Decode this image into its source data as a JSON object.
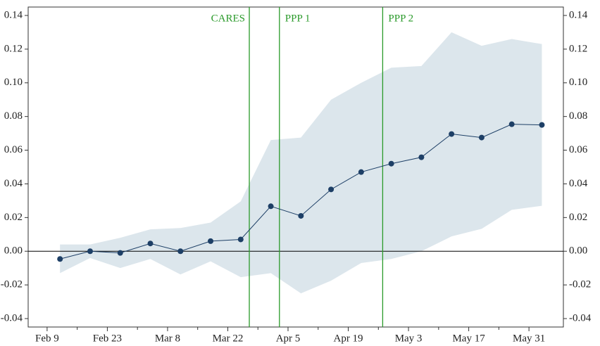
{
  "chart_data": {
    "type": "line",
    "x": [
      43,
      50,
      57,
      64,
      71,
      78,
      85,
      92,
      99,
      106,
      113,
      120,
      127,
      134,
      141,
      148,
      155
    ],
    "series": [
      {
        "color": "#1d3f66",
        "values": [
          -0.0046,
          0,
          -0.001,
          0.0046,
          0,
          0.006,
          0.007,
          0.0267,
          0.021,
          0.0367,
          0.047,
          0.052,
          0.0558,
          0.0696,
          0.0675,
          0.0754,
          0.075
        ],
        "upper": [
          0.004,
          0.004,
          0.008,
          0.013,
          0.0138,
          0.017,
          0.0296,
          0.066,
          0.0675,
          0.09,
          0.1,
          0.109,
          0.11,
          0.13,
          0.122,
          0.126,
          0.123
        ],
        "lower": [
          -0.013,
          -0.004,
          -0.01,
          -0.0046,
          -0.0138,
          -0.006,
          -0.0154,
          -0.013,
          -0.025,
          -0.0175,
          -0.007,
          -0.0046,
          0,
          0.0088,
          0.0133,
          0.0246,
          0.027
        ],
        "band_color": "#dce6ec"
      }
    ],
    "xlim": [
      35.6,
      160
    ],
    "xticks": [
      {
        "value": 40,
        "label": "Feb 9"
      },
      {
        "value": 54,
        "label": "Feb 23"
      },
      {
        "value": 68,
        "label": "Mar 8"
      },
      {
        "value": 82,
        "label": "Mar 22"
      },
      {
        "value": 96,
        "label": "Apr 5"
      },
      {
        "value": 110,
        "label": "Apr 19"
      },
      {
        "value": 124,
        "label": "May 3"
      },
      {
        "value": 138,
        "label": "May 17"
      },
      {
        "value": 152,
        "label": "May 31"
      }
    ],
    "ylim": [
      -0.045,
      0.145
    ],
    "yticks": [
      {
        "value": -0.04,
        "label": "-0.04"
      },
      {
        "value": -0.02,
        "label": "-0.02"
      },
      {
        "value": 0,
        "label": "0.00"
      },
      {
        "value": 0.02,
        "label": "0.02"
      },
      {
        "value": 0.04,
        "label": "0.04"
      },
      {
        "value": 0.06,
        "label": "0.06"
      },
      {
        "value": 0.08,
        "label": "0.08"
      },
      {
        "value": 0.1,
        "label": "0.10"
      },
      {
        "value": 0.12,
        "label": "0.12"
      },
      {
        "value": 0.14,
        "label": "0.14"
      }
    ],
    "reference_line": 0,
    "events": [
      {
        "label": "CARES",
        "x": 87
      },
      {
        "label": "PPP 1",
        "x": 94
      },
      {
        "label": "PPP 2",
        "x": 118
      }
    ],
    "event_color": "#2a9a2a"
  }
}
